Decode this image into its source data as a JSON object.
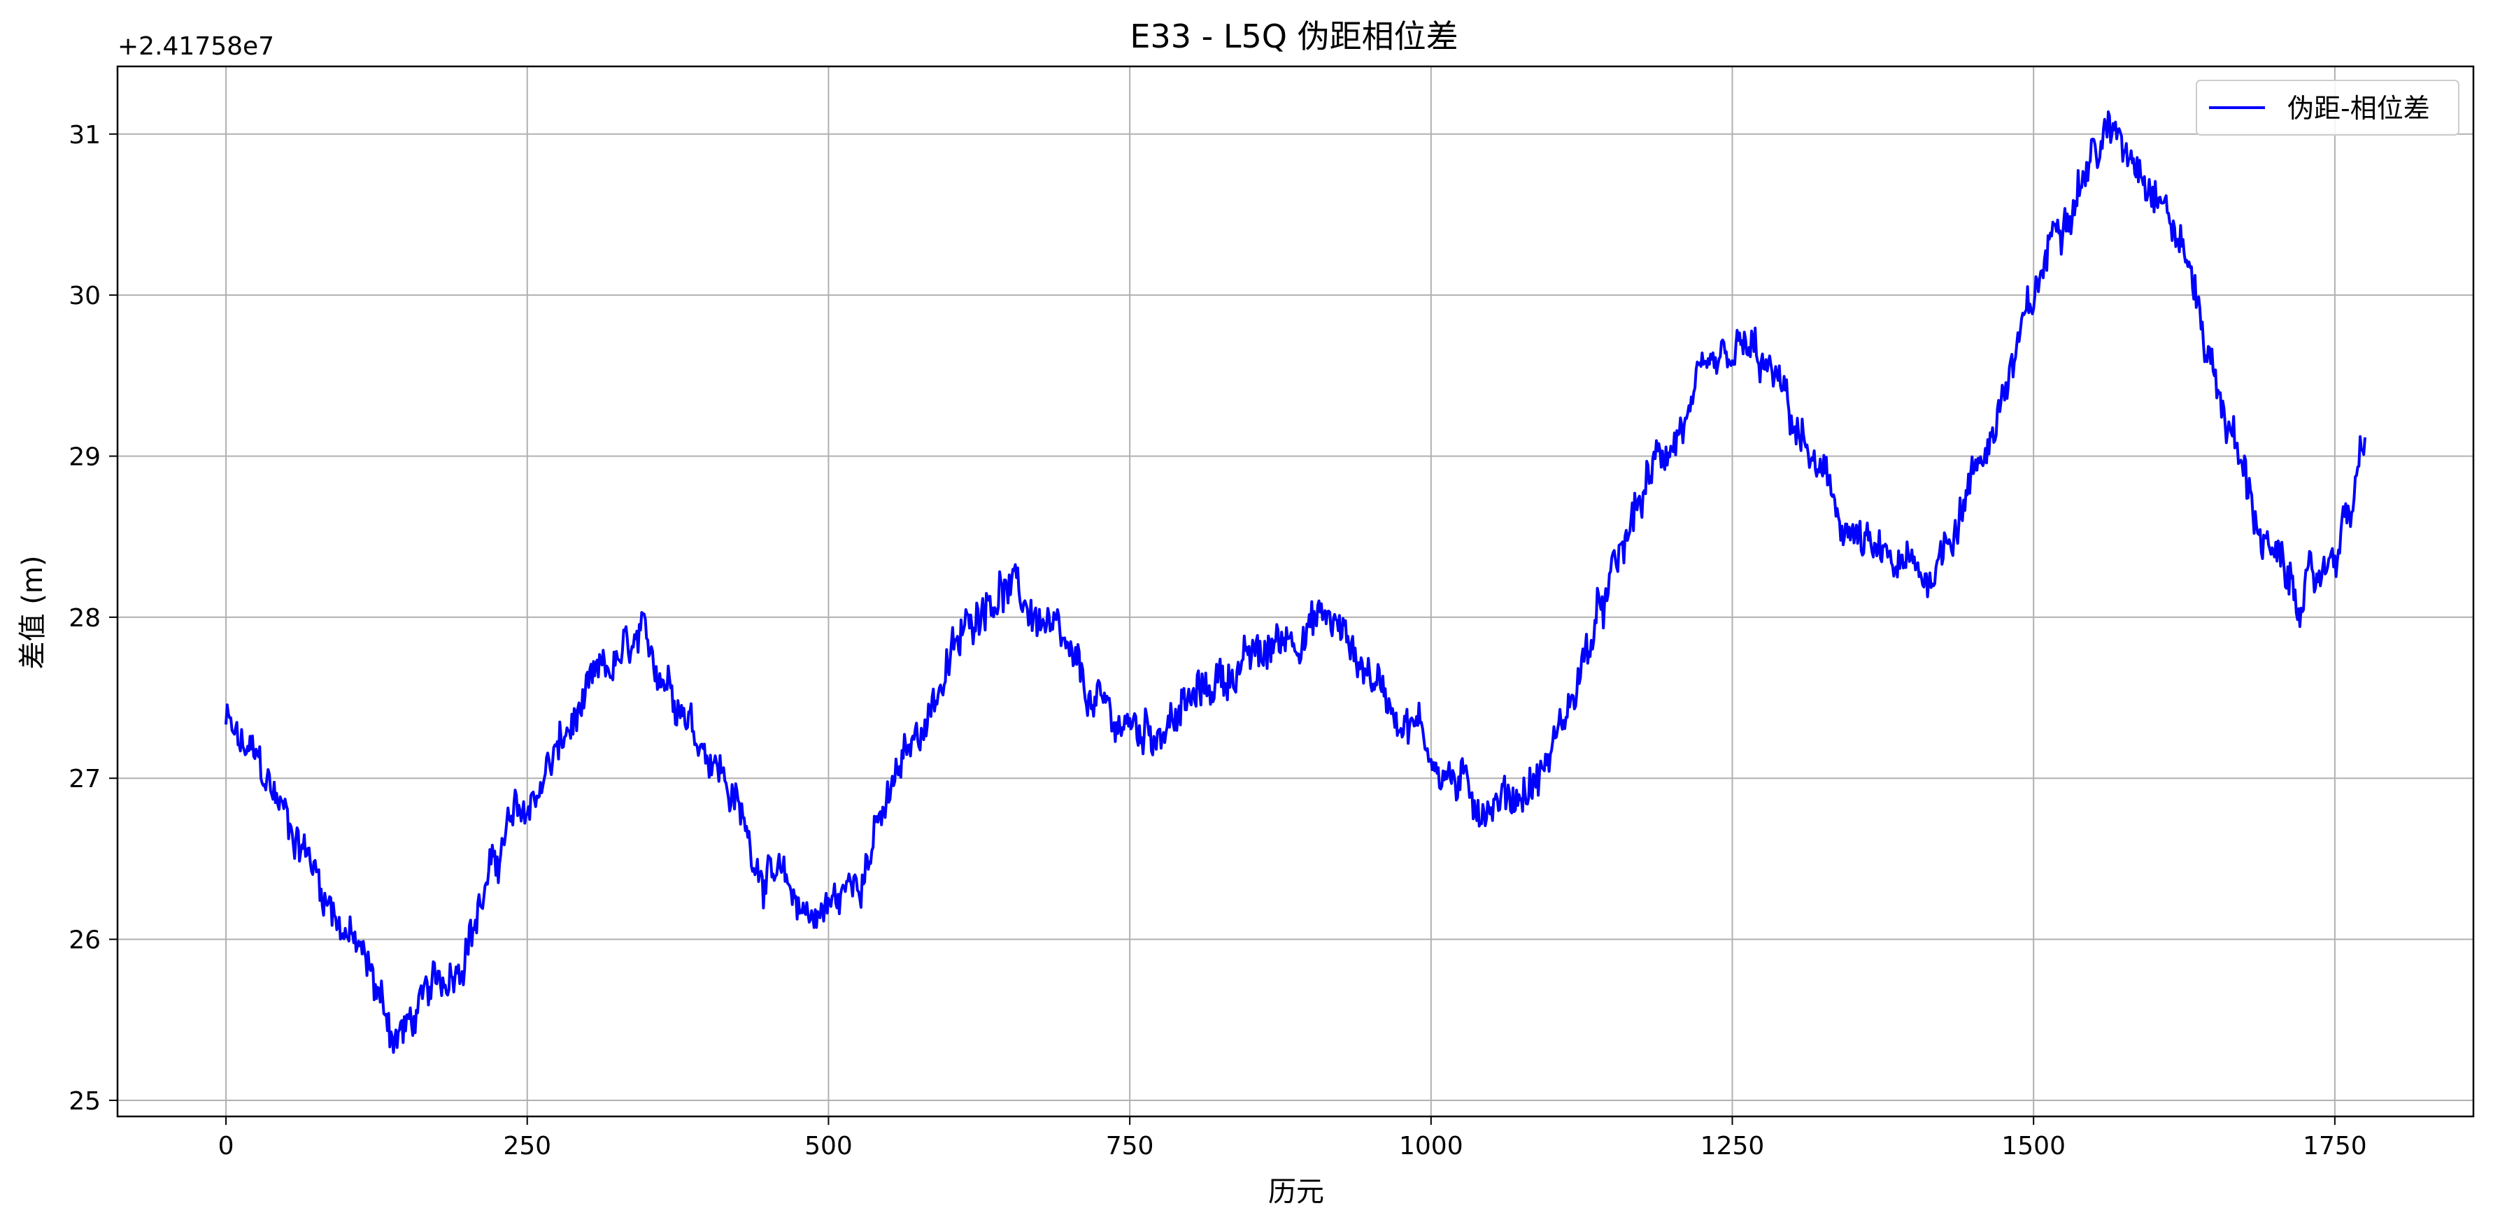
{
  "chart_data": {
    "type": "line",
    "title": "E33 - L5Q 伪距相位差",
    "xlabel": "历元",
    "ylabel": "差值 (m)",
    "y_offset_label": "+2.41758e7",
    "xlim": [
      -90,
      1865
    ],
    "ylim": [
      24.9,
      31.42
    ],
    "x_ticks": [
      0,
      250,
      500,
      750,
      1000,
      1250,
      1500,
      1750
    ],
    "y_ticks": [
      25,
      26,
      27,
      28,
      29,
      30,
      31
    ],
    "x_tick_labels": [
      "0",
      "250",
      "500",
      "750",
      "1000",
      "1250",
      "1500",
      "1750"
    ],
    "y_tick_labels": [
      "25",
      "26",
      "27",
      "28",
      "29",
      "30",
      "31"
    ],
    "grid": true,
    "legend_position": "top-right",
    "series": [
      {
        "name": "伪距-相位差",
        "color": "#0000ff",
        "x": [
          0,
          10,
          25,
          40,
          55,
          70,
          85,
          100,
          115,
          130,
          140,
          150,
          160,
          175,
          190,
          205,
          220,
          235,
          250,
          270,
          290,
          310,
          330,
          345,
          360,
          375,
          390,
          405,
          420,
          435,
          450,
          470,
          490,
          500,
          515,
          530,
          545,
          560,
          575,
          590,
          610,
          630,
          645,
          660,
          680,
          700,
          720,
          740,
          760,
          780,
          800,
          820,
          840,
          860,
          880,
          900,
          915,
          930,
          950,
          970,
          990,
          1010,
          1030,
          1050,
          1070,
          1090,
          1110,
          1130,
          1150,
          1170,
          1190,
          1210,
          1230,
          1250,
          1260,
          1270,
          1290,
          1310,
          1330,
          1350,
          1370,
          1390,
          1410,
          1420,
          1440,
          1460,
          1480,
          1500,
          1520,
          1540,
          1555,
          1570,
          1590,
          1610,
          1630,
          1650,
          1670,
          1690,
          1710,
          1720,
          1735,
          1750,
          1765,
          1775
        ],
        "y": [
          27.35,
          27.2,
          27.1,
          26.9,
          26.7,
          26.5,
          26.25,
          26.05,
          25.85,
          25.6,
          25.4,
          25.45,
          25.55,
          25.7,
          25.85,
          26.1,
          26.4,
          26.7,
          26.8,
          27.1,
          27.35,
          27.6,
          27.75,
          27.8,
          27.7,
          27.55,
          27.3,
          27.15,
          26.9,
          26.6,
          26.4,
          26.25,
          26.15,
          26.2,
          26.3,
          26.5,
          26.75,
          27.05,
          27.3,
          27.55,
          27.85,
          28.15,
          28.2,
          28.1,
          27.95,
          27.7,
          27.45,
          27.35,
          27.3,
          27.35,
          27.45,
          27.6,
          27.7,
          27.75,
          27.9,
          27.95,
          28.0,
          27.85,
          27.65,
          27.45,
          27.3,
          27.05,
          26.9,
          26.85,
          26.9,
          27.0,
          27.35,
          27.8,
          28.2,
          28.65,
          29.0,
          29.2,
          29.45,
          29.6,
          29.65,
          29.6,
          29.4,
          29.05,
          28.75,
          28.5,
          28.35,
          28.3,
          28.25,
          28.35,
          28.7,
          29.05,
          29.5,
          29.95,
          30.5,
          30.75,
          30.95,
          31.0,
          30.85,
          30.55,
          30.15,
          29.5,
          29.0,
          28.5,
          28.2,
          28.15,
          28.2,
          28.45,
          28.7,
          29.1
        ]
      }
    ]
  }
}
